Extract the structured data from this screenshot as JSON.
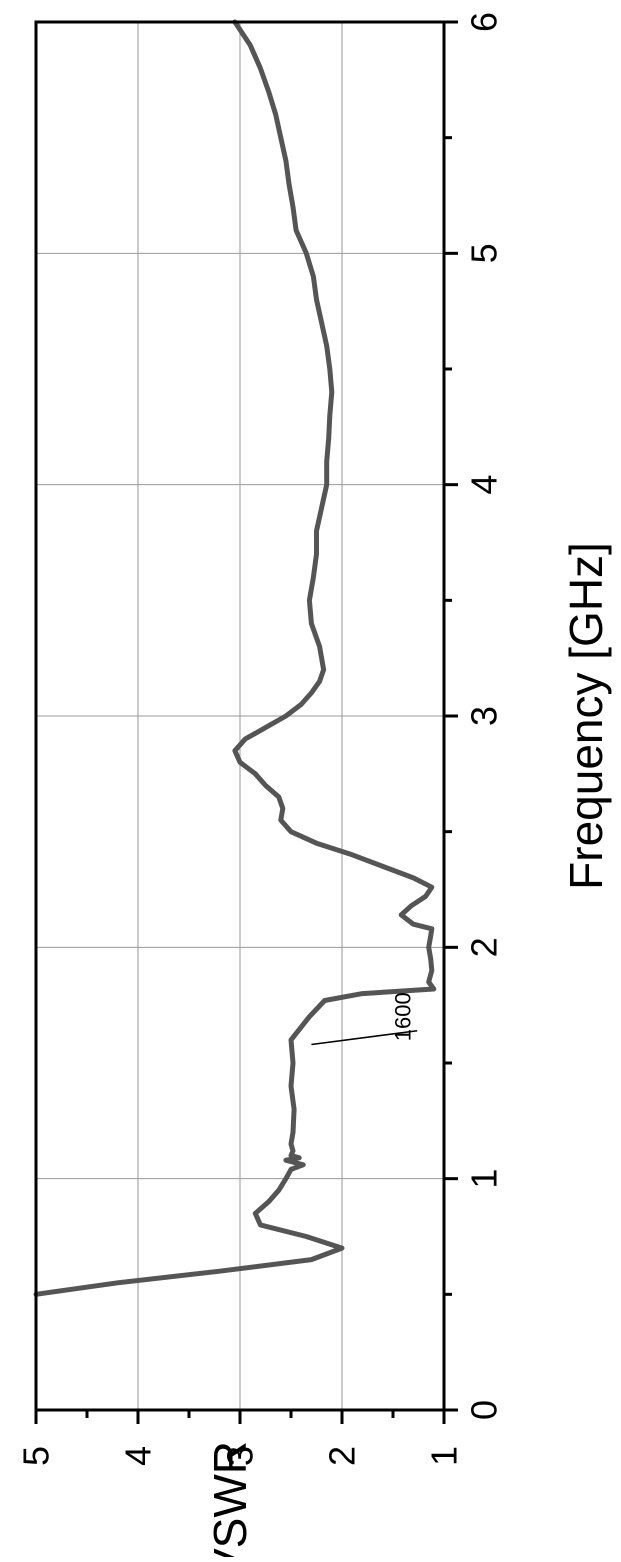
{
  "chart_data": {
    "type": "line",
    "title": "",
    "xlabel": "Frequency [GHz]",
    "ylabel": "VSWR",
    "xlim": [
      0,
      6
    ],
    "ylim": [
      1,
      5
    ],
    "x_ticks": [
      "0",
      "1",
      "2",
      "3",
      "4",
      "5",
      "6"
    ],
    "y_ticks": [
      "1",
      "2",
      "3",
      "4",
      "5"
    ],
    "grid": true,
    "orientation": "rotated 90° counter-clockwise",
    "series": [
      {
        "color": "#555555",
        "x": [
          0.5,
          0.55,
          0.6,
          0.65,
          0.7,
          0.75,
          0.8,
          0.85,
          0.9,
          0.95,
          1.0,
          1.04,
          1.06,
          1.08,
          1.09,
          1.1,
          1.12,
          1.15,
          1.2,
          1.3,
          1.4,
          1.5,
          1.6,
          1.7,
          1.77,
          1.8,
          1.82,
          1.85,
          1.9,
          1.95,
          2.0,
          2.05,
          2.08,
          2.1,
          2.14,
          2.18,
          2.22,
          2.26,
          2.3,
          2.35,
          2.4,
          2.45,
          2.5,
          2.55,
          2.6,
          2.65,
          2.7,
          2.75,
          2.8,
          2.85,
          2.9,
          2.95,
          3.0,
          3.05,
          3.1,
          3.15,
          3.2,
          3.3,
          3.4,
          3.5,
          3.6,
          3.7,
          3.8,
          3.9,
          4.0,
          4.1,
          4.2,
          4.3,
          4.4,
          4.5,
          4.6,
          4.7,
          4.8,
          4.9,
          5.0,
          5.1,
          5.2,
          5.3,
          5.4,
          5.5,
          5.6,
          5.7,
          5.8,
          5.9,
          6.0
        ],
        "y": [
          5.0,
          4.2,
          3.2,
          2.3,
          2.0,
          2.35,
          2.8,
          2.85,
          2.72,
          2.62,
          2.55,
          2.5,
          2.38,
          2.55,
          2.42,
          2.5,
          2.48,
          2.5,
          2.48,
          2.47,
          2.5,
          2.48,
          2.5,
          2.32,
          2.17,
          1.8,
          1.1,
          1.15,
          1.12,
          1.13,
          1.15,
          1.13,
          1.12,
          1.3,
          1.42,
          1.32,
          1.18,
          1.12,
          1.3,
          1.6,
          1.9,
          2.25,
          2.5,
          2.6,
          2.58,
          2.62,
          2.75,
          2.85,
          3.0,
          3.05,
          2.95,
          2.75,
          2.55,
          2.4,
          2.3,
          2.22,
          2.18,
          2.22,
          2.3,
          2.32,
          2.28,
          2.25,
          2.25,
          2.2,
          2.15,
          2.15,
          2.13,
          2.12,
          2.1,
          2.12,
          2.15,
          2.2,
          2.25,
          2.28,
          2.35,
          2.45,
          2.48,
          2.52,
          2.55,
          2.6,
          2.65,
          2.72,
          2.8,
          2.9,
          3.05
        ]
      }
    ],
    "annotations": [
      {
        "text": "1600",
        "x": 1.58,
        "y": 2.3,
        "label_x": 1.7,
        "label_y": 1.4
      }
    ]
  }
}
